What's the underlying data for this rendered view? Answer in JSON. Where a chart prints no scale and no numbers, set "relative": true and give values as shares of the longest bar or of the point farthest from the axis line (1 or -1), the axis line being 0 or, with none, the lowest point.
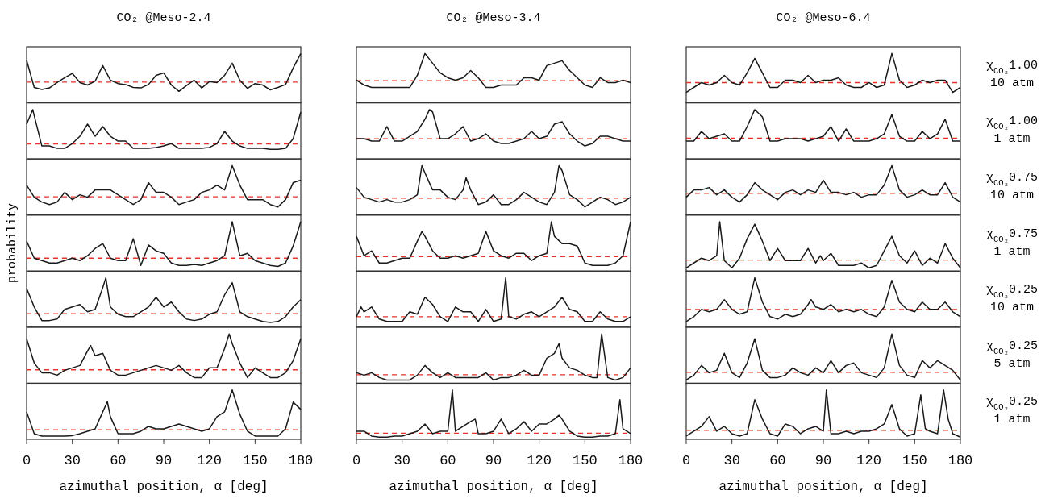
{
  "chart_data": [
    {
      "type": "line",
      "title": "CO₂ @Meso-2.4",
      "relative": true,
      "xlim": [
        0,
        180
      ],
      "tick_labels": false,
      "color": "#1a1a1a",
      "ref_lines": [
        {
          "axis": "y",
          "value": 0.41,
          "color": "#e8312a",
          "line_style": "dashed"
        }
      ],
      "x": [
        0,
        5,
        10,
        15,
        20,
        25,
        30,
        35,
        40,
        45,
        50,
        55,
        60,
        65,
        70,
        75,
        80,
        85,
        90,
        95,
        100,
        105,
        110,
        115,
        120,
        125,
        130,
        135,
        140,
        145,
        150,
        155,
        160,
        165,
        170,
        175,
        180
      ],
      "values": [
        0.86,
        0.3,
        0.26,
        0.29,
        0.4,
        0.5,
        0.59,
        0.4,
        0.35,
        0.43,
        0.75,
        0.45,
        0.38,
        0.36,
        0.3,
        0.29,
        0.36,
        0.55,
        0.6,
        0.35,
        0.22,
        0.34,
        0.45,
        0.29,
        0.42,
        0.4,
        0.55,
        0.8,
        0.45,
        0.28,
        0.38,
        0.35,
        0.25,
        0.3,
        0.36,
        0.7,
        1.0
      ]
    },
    {
      "type": "line",
      "title": "CO₂ @Meso-3.4",
      "relative": true,
      "xlim": [
        0,
        180
      ],
      "tick_labels": false,
      "color": "#1a1a1a",
      "ref_lines": [
        {
          "axis": "y",
          "value": 0.44,
          "color": "#e8312a",
          "line_style": "dashed"
        }
      ],
      "x": [
        0,
        5,
        10,
        15,
        20,
        25,
        30,
        35,
        40,
        45,
        50,
        55,
        60,
        65,
        70,
        75,
        80,
        85,
        90,
        95,
        100,
        105,
        110,
        115,
        120,
        125,
        130,
        135,
        140,
        145,
        150,
        155,
        160,
        165,
        170,
        175,
        180
      ],
      "values": [
        0.45,
        0.35,
        0.3,
        0.3,
        0.3,
        0.3,
        0.3,
        0.3,
        0.55,
        1.0,
        0.8,
        0.6,
        0.5,
        0.45,
        0.5,
        0.65,
        0.5,
        0.3,
        0.3,
        0.35,
        0.35,
        0.35,
        0.5,
        0.5,
        0.45,
        0.75,
        0.8,
        0.85,
        0.65,
        0.5,
        0.35,
        0.3,
        0.5,
        0.4,
        0.4,
        0.45,
        0.4
      ]
    },
    {
      "type": "line",
      "title": "CO₂ @Meso-6.4",
      "y2label": "χ$_{CO₂}$1.00\n10 atm",
      "relative": true,
      "xlim": [
        0,
        180
      ],
      "tick_labels": false,
      "color": "#1a1a1a",
      "ref_lines": [
        {
          "axis": "y",
          "value": 0.4,
          "color": "#e8312a",
          "line_style": "dashed"
        }
      ],
      "x": [
        0,
        5,
        10,
        15,
        20,
        25,
        30,
        35,
        40,
        45,
        50,
        55,
        60,
        65,
        70,
        75,
        80,
        85,
        90,
        95,
        100,
        105,
        110,
        115,
        120,
        125,
        130,
        135,
        140,
        145,
        150,
        155,
        160,
        165,
        170,
        175,
        180
      ],
      "values": [
        0.2,
        0.3,
        0.4,
        0.35,
        0.4,
        0.55,
        0.4,
        0.35,
        0.6,
        0.9,
        0.6,
        0.3,
        0.3,
        0.45,
        0.45,
        0.4,
        0.55,
        0.4,
        0.45,
        0.45,
        0.5,
        0.35,
        0.3,
        0.3,
        0.4,
        0.3,
        0.35,
        1.0,
        0.45,
        0.3,
        0.35,
        0.45,
        0.4,
        0.45,
        0.45,
        0.2,
        0.3
      ]
    },
    {
      "type": "line",
      "relative": true,
      "xlim": [
        0,
        180
      ],
      "tick_labels": false,
      "color": "#1a1a1a",
      "ref_lines": [
        {
          "axis": "y",
          "value": 0.29,
          "color": "#e8312a",
          "line_style": "dashed"
        }
      ],
      "x": [
        0,
        4,
        10,
        15,
        20,
        25,
        30,
        35,
        40,
        45,
        50,
        55,
        60,
        65,
        70,
        75,
        80,
        85,
        90,
        95,
        100,
        105,
        110,
        115,
        120,
        125,
        130,
        135,
        140,
        145,
        150,
        155,
        160,
        165,
        170,
        175,
        180
      ],
      "values": [
        0.7,
        1.0,
        0.25,
        0.25,
        0.2,
        0.2,
        0.3,
        0.45,
        0.7,
        0.45,
        0.65,
        0.45,
        0.35,
        0.35,
        0.2,
        0.2,
        0.2,
        0.22,
        0.25,
        0.3,
        0.2,
        0.2,
        0.2,
        0.2,
        0.22,
        0.3,
        0.55,
        0.35,
        0.25,
        0.2,
        0.2,
        0.2,
        0.18,
        0.18,
        0.2,
        0.4,
        0.95
      ]
    },
    {
      "type": "line",
      "relative": true,
      "xlim": [
        0,
        180
      ],
      "tick_labels": false,
      "color": "#1a1a1a",
      "ref_lines": [
        {
          "axis": "y",
          "value": 0.4,
          "color": "#e8312a",
          "line_style": "dashed"
        }
      ],
      "x": [
        0,
        5,
        10,
        15,
        20,
        25,
        30,
        35,
        40,
        45,
        48,
        50,
        55,
        60,
        65,
        70,
        75,
        80,
        85,
        90,
        95,
        100,
        105,
        110,
        115,
        120,
        125,
        130,
        135,
        140,
        145,
        150,
        155,
        160,
        165,
        170,
        175,
        180
      ],
      "values": [
        0.4,
        0.4,
        0.35,
        0.35,
        0.65,
        0.35,
        0.35,
        0.45,
        0.55,
        0.8,
        1.0,
        0.95,
        0.4,
        0.4,
        0.5,
        0.65,
        0.35,
        0.4,
        0.5,
        0.35,
        0.3,
        0.3,
        0.35,
        0.4,
        0.55,
        0.4,
        0.45,
        0.7,
        0.75,
        0.5,
        0.35,
        0.25,
        0.3,
        0.45,
        0.45,
        0.4,
        0.35,
        0.35
      ]
    },
    {
      "type": "line",
      "y2label": "χ$_{CO₂}$1.00\n1 atm",
      "relative": true,
      "xlim": [
        0,
        180
      ],
      "tick_labels": false,
      "color": "#1a1a1a",
      "ref_lines": [
        {
          "axis": "y",
          "value": 0.41,
          "color": "#e8312a",
          "line_style": "dashed"
        }
      ],
      "x": [
        0,
        5,
        10,
        15,
        20,
        25,
        30,
        35,
        40,
        45,
        50,
        55,
        60,
        65,
        70,
        75,
        80,
        85,
        90,
        95,
        100,
        105,
        110,
        115,
        120,
        125,
        130,
        135,
        140,
        145,
        150,
        155,
        160,
        165,
        170,
        175,
        180
      ],
      "values": [
        0.35,
        0.35,
        0.55,
        0.4,
        0.45,
        0.5,
        0.35,
        0.35,
        0.65,
        1.0,
        0.85,
        0.35,
        0.35,
        0.4,
        0.4,
        0.4,
        0.35,
        0.4,
        0.45,
        0.65,
        0.35,
        0.6,
        0.35,
        0.35,
        0.35,
        0.4,
        0.5,
        0.9,
        0.45,
        0.35,
        0.35,
        0.55,
        0.4,
        0.5,
        0.8,
        0.35,
        0.35
      ]
    },
    {
      "type": "line",
      "relative": true,
      "xlim": [
        0,
        180
      ],
      "tick_labels": false,
      "color": "#1a1a1a",
      "ref_lines": [
        {
          "axis": "y",
          "value": 0.36,
          "color": "#e8312a",
          "line_style": "dashed"
        }
      ],
      "x": [
        0,
        5,
        10,
        15,
        20,
        25,
        30,
        35,
        40,
        45,
        50,
        55,
        60,
        65,
        70,
        75,
        80,
        85,
        90,
        95,
        100,
        105,
        110,
        115,
        120,
        125,
        130,
        135,
        140,
        145,
        150,
        155,
        160,
        165,
        170,
        175,
        180
      ],
      "values": [
        0.6,
        0.35,
        0.25,
        0.2,
        0.25,
        0.45,
        0.3,
        0.4,
        0.35,
        0.5,
        0.5,
        0.5,
        0.4,
        0.3,
        0.2,
        0.3,
        0.65,
        0.45,
        0.45,
        0.35,
        0.2,
        0.25,
        0.3,
        0.45,
        0.5,
        0.6,
        0.5,
        1.0,
        0.6,
        0.3,
        0.3,
        0.3,
        0.2,
        0.15,
        0.3,
        0.65,
        0.7
      ]
    },
    {
      "type": "line",
      "relative": true,
      "xlim": [
        0,
        180
      ],
      "tick_labels": false,
      "color": "#1a1a1a",
      "ref_lines": [
        {
          "axis": "y",
          "value": 0.33,
          "color": "#e8312a",
          "line_style": "dashed"
        }
      ],
      "x": [
        0,
        5,
        10,
        15,
        20,
        25,
        30,
        35,
        40,
        43,
        45,
        50,
        55,
        60,
        65,
        70,
        72,
        75,
        80,
        85,
        90,
        95,
        100,
        105,
        110,
        115,
        120,
        125,
        130,
        133,
        135,
        140,
        145,
        150,
        155,
        160,
        165,
        170,
        175,
        180
      ],
      "values": [
        0.55,
        0.35,
        0.3,
        0.25,
        0.3,
        0.25,
        0.25,
        0.3,
        0.4,
        1.0,
        0.85,
        0.5,
        0.5,
        0.35,
        0.3,
        0.5,
        0.75,
        0.5,
        0.2,
        0.25,
        0.4,
        0.2,
        0.2,
        0.3,
        0.45,
        0.35,
        0.25,
        0.2,
        0.45,
        1.0,
        0.9,
        0.4,
        0.3,
        0.15,
        0.25,
        0.35,
        0.3,
        0.2,
        0.25,
        0.35
      ]
    },
    {
      "type": "line",
      "y2label": "χ$_{CO₂}$0.75\n10 atm",
      "relative": true,
      "xlim": [
        0,
        180
      ],
      "tick_labels": false,
      "color": "#1a1a1a",
      "ref_lines": [
        {
          "axis": "y",
          "value": 0.43,
          "color": "#e8312a",
          "line_style": "dashed"
        }
      ],
      "x": [
        0,
        5,
        10,
        15,
        20,
        25,
        30,
        35,
        40,
        45,
        50,
        55,
        60,
        65,
        70,
        75,
        80,
        85,
        90,
        95,
        100,
        105,
        110,
        115,
        120,
        125,
        130,
        135,
        140,
        145,
        150,
        155,
        160,
        165,
        170,
        175,
        180
      ],
      "values": [
        0.35,
        0.5,
        0.5,
        0.55,
        0.4,
        0.5,
        0.35,
        0.25,
        0.4,
        0.65,
        0.5,
        0.4,
        0.3,
        0.45,
        0.5,
        0.4,
        0.5,
        0.45,
        0.7,
        0.45,
        0.45,
        0.4,
        0.45,
        0.35,
        0.4,
        0.4,
        0.6,
        1.0,
        0.5,
        0.35,
        0.4,
        0.5,
        0.4,
        0.4,
        0.65,
        0.35,
        0.25
      ]
    },
    {
      "type": "line",
      "ylabel": "probability",
      "relative": true,
      "xlim": [
        0,
        180
      ],
      "tick_labels": false,
      "color": "#1a1a1a",
      "ref_lines": [
        {
          "axis": "y",
          "value": 0.25,
          "color": "#e8312a",
          "line_style": "dashed"
        }
      ],
      "x": [
        0,
        5,
        10,
        15,
        20,
        25,
        30,
        35,
        40,
        45,
        50,
        55,
        60,
        65,
        70,
        75,
        80,
        85,
        90,
        95,
        100,
        105,
        110,
        115,
        120,
        125,
        130,
        135,
        140,
        145,
        150,
        155,
        160,
        165,
        170,
        175,
        180
      ],
      "values": [
        0.6,
        0.25,
        0.2,
        0.15,
        0.15,
        0.2,
        0.25,
        0.2,
        0.3,
        0.45,
        0.55,
        0.25,
        0.2,
        0.2,
        0.65,
        0.1,
        0.52,
        0.4,
        0.35,
        0.15,
        0.1,
        0.1,
        0.12,
        0.1,
        0.15,
        0.2,
        0.3,
        1.0,
        0.3,
        0.35,
        0.2,
        0.15,
        0.1,
        0.08,
        0.15,
        0.5,
        1.0
      ]
    },
    {
      "type": "line",
      "relative": true,
      "xlim": [
        0,
        180
      ],
      "tick_labels": false,
      "color": "#1a1a1a",
      "ref_lines": [
        {
          "axis": "y",
          "value": 0.28,
          "color": "#e8312a",
          "line_style": "dashed"
        }
      ],
      "x": [
        0,
        5,
        10,
        15,
        20,
        25,
        30,
        35,
        40,
        43,
        45,
        50,
        55,
        60,
        65,
        70,
        75,
        80,
        85,
        90,
        95,
        100,
        105,
        110,
        115,
        120,
        125,
        128,
        130,
        135,
        140,
        145,
        150,
        155,
        160,
        165,
        170,
        175,
        180
      ],
      "values": [
        0.7,
        0.3,
        0.4,
        0.15,
        0.15,
        0.2,
        0.25,
        0.25,
        0.6,
        0.8,
        0.7,
        0.4,
        0.25,
        0.25,
        0.3,
        0.25,
        0.3,
        0.35,
        0.8,
        0.4,
        0.3,
        0.25,
        0.35,
        0.35,
        0.2,
        0.3,
        0.35,
        1.0,
        0.7,
        0.55,
        0.55,
        0.5,
        0.15,
        0.1,
        0.1,
        0.1,
        0.15,
        0.3,
        1.0
      ]
    },
    {
      "type": "line",
      "y2label": "χ$_{CO₂}$0.75\n1 atm",
      "relative": true,
      "xlim": [
        0,
        180
      ],
      "tick_labels": false,
      "color": "#1a1a1a",
      "ref_lines": [
        {
          "axis": "y",
          "value": 0.21,
          "color": "#e8312a",
          "line_style": "dashed"
        }
      ],
      "x": [
        0,
        5,
        10,
        15,
        20,
        22,
        25,
        30,
        35,
        40,
        45,
        50,
        55,
        60,
        65,
        70,
        75,
        80,
        85,
        88,
        90,
        95,
        100,
        105,
        110,
        115,
        120,
        125,
        130,
        135,
        140,
        145,
        150,
        155,
        160,
        165,
        170,
        175,
        180
      ],
      "values": [
        0.05,
        0.15,
        0.25,
        0.2,
        0.3,
        1.0,
        0.2,
        0.05,
        0.25,
        0.65,
        0.95,
        0.6,
        0.2,
        0.45,
        0.2,
        0.2,
        0.2,
        0.45,
        0.15,
        0.3,
        0.2,
        0.35,
        0.1,
        0.1,
        0.1,
        0.15,
        0.05,
        0.1,
        0.4,
        0.7,
        0.3,
        0.15,
        0.4,
        0.1,
        0.25,
        0.15,
        0.55,
        0.25,
        0.05
      ]
    },
    {
      "type": "line",
      "relative": true,
      "xlim": [
        0,
        180
      ],
      "tick_labels": false,
      "color": "#1a1a1a",
      "ref_lines": [
        {
          "axis": "y",
          "value": 0.26,
          "color": "#e8312a",
          "line_style": "dashed"
        }
      ],
      "x": [
        0,
        5,
        10,
        15,
        20,
        25,
        30,
        35,
        40,
        45,
        50,
        52,
        55,
        60,
        65,
        70,
        75,
        80,
        85,
        90,
        95,
        100,
        105,
        110,
        115,
        120,
        125,
        130,
        135,
        140,
        145,
        150,
        155,
        160,
        165,
        170,
        175,
        180
      ],
      "values": [
        0.78,
        0.4,
        0.12,
        0.12,
        0.15,
        0.35,
        0.4,
        0.45,
        0.3,
        0.35,
        0.8,
        1.0,
        0.4,
        0.25,
        0.2,
        0.2,
        0.3,
        0.4,
        0.6,
        0.4,
        0.5,
        0.3,
        0.15,
        0.12,
        0.15,
        0.25,
        0.3,
        0.65,
        0.9,
        0.3,
        0.2,
        0.15,
        0.1,
        0.08,
        0.1,
        0.2,
        0.4,
        0.55
      ]
    },
    {
      "type": "line",
      "relative": true,
      "xlim": [
        0,
        180
      ],
      "tick_labels": false,
      "color": "#1a1a1a",
      "ref_lines": [
        {
          "axis": "y",
          "value": 0.2,
          "color": "#e8312a",
          "line_style": "dashed"
        }
      ],
      "x": [
        0,
        3,
        5,
        10,
        15,
        20,
        25,
        30,
        35,
        40,
        45,
        50,
        55,
        60,
        65,
        70,
        75,
        80,
        85,
        90,
        95,
        98,
        100,
        105,
        110,
        115,
        120,
        125,
        130,
        135,
        140,
        145,
        150,
        155,
        160,
        165,
        170,
        175,
        180
      ],
      "values": [
        0.2,
        0.4,
        0.3,
        0.4,
        0.15,
        0.1,
        0.1,
        0.1,
        0.3,
        0.25,
        0.6,
        0.45,
        0.2,
        0.1,
        0.4,
        0.3,
        0.3,
        0.1,
        0.35,
        0.1,
        0.15,
        1.0,
        0.2,
        0.15,
        0.25,
        0.3,
        0.2,
        0.3,
        0.4,
        0.6,
        0.35,
        0.3,
        0.1,
        0.1,
        0.3,
        0.15,
        0.1,
        0.1,
        0.2
      ]
    },
    {
      "type": "line",
      "y2label": "χ$_{CO₂}$0.25\n10 atm",
      "relative": true,
      "xlim": [
        0,
        180
      ],
      "tick_labels": false,
      "color": "#1a1a1a",
      "ref_lines": [
        {
          "axis": "y",
          "value": 0.35,
          "color": "#e8312a",
          "line_style": "dashed"
        }
      ],
      "x": [
        0,
        5,
        10,
        15,
        20,
        25,
        30,
        35,
        40,
        45,
        50,
        55,
        60,
        65,
        70,
        75,
        80,
        82,
        85,
        90,
        95,
        100,
        105,
        110,
        115,
        120,
        125,
        130,
        135,
        140,
        145,
        150,
        155,
        160,
        165,
        170,
        175,
        180
      ],
      "values": [
        0.1,
        0.2,
        0.35,
        0.3,
        0.35,
        0.55,
        0.35,
        0.25,
        0.3,
        1.0,
        0.5,
        0.2,
        0.15,
        0.25,
        0.2,
        0.25,
        0.45,
        0.55,
        0.4,
        0.35,
        0.45,
        0.3,
        0.35,
        0.3,
        0.35,
        0.25,
        0.2,
        0.4,
        0.95,
        0.5,
        0.35,
        0.3,
        0.5,
        0.35,
        0.35,
        0.5,
        0.3,
        0.2
      ]
    },
    {
      "type": "line",
      "relative": true,
      "xlim": [
        0,
        180
      ],
      "tick_labels": false,
      "color": "#1a1a1a",
      "ref_lines": [
        {
          "axis": "y",
          "value": 0.26,
          "color": "#e8312a",
          "line_style": "dashed"
        }
      ],
      "x": [
        0,
        5,
        10,
        15,
        20,
        25,
        30,
        35,
        40,
        42,
        45,
        50,
        55,
        60,
        65,
        70,
        75,
        80,
        85,
        90,
        95,
        100,
        105,
        110,
        115,
        120,
        125,
        130,
        133,
        135,
        140,
        145,
        150,
        155,
        160,
        165,
        170,
        175,
        180
      ],
      "values": [
        0.9,
        0.4,
        0.2,
        0.2,
        0.15,
        0.25,
        0.3,
        0.35,
        0.65,
        0.76,
        0.55,
        0.6,
        0.25,
        0.15,
        0.15,
        0.2,
        0.25,
        0.3,
        0.35,
        0.3,
        0.25,
        0.35,
        0.2,
        0.1,
        0.1,
        0.3,
        0.3,
        0.7,
        1.0,
        0.8,
        0.4,
        0.1,
        0.3,
        0.2,
        0.1,
        0.1,
        0.2,
        0.45,
        0.9
      ]
    },
    {
      "type": "line",
      "relative": true,
      "xlim": [
        0,
        180
      ],
      "tick_labels": false,
      "color": "#1a1a1a",
      "ref_lines": [
        {
          "axis": "y",
          "value": 0.16,
          "color": "#e8312a",
          "line_style": "dashed"
        }
      ],
      "x": [
        0,
        5,
        10,
        15,
        20,
        25,
        30,
        35,
        40,
        45,
        50,
        55,
        60,
        65,
        70,
        75,
        80,
        85,
        90,
        95,
        100,
        105,
        110,
        115,
        120,
        125,
        130,
        133,
        135,
        140,
        145,
        150,
        155,
        158,
        161,
        165,
        170,
        175,
        180
      ],
      "values": [
        0.2,
        0.15,
        0.2,
        0.1,
        0.05,
        0.05,
        0.05,
        0.05,
        0.15,
        0.35,
        0.2,
        0.1,
        0.2,
        0.1,
        0.1,
        0.1,
        0.1,
        0.2,
        0.05,
        0.1,
        0.1,
        0.15,
        0.25,
        0.15,
        0.15,
        0.5,
        0.6,
        0.8,
        0.5,
        0.3,
        0.25,
        0.15,
        0.1,
        0.1,
        1.0,
        0.1,
        0.05,
        0.1,
        0.3
      ]
    },
    {
      "type": "line",
      "y2label": "χ$_{CO₂}$0.25\n5 atm",
      "relative": true,
      "xlim": [
        0,
        180
      ],
      "tick_labels": false,
      "color": "#1a1a1a",
      "ref_lines": [
        {
          "axis": "y",
          "value": 0.21,
          "color": "#e8312a",
          "line_style": "dashed"
        }
      ],
      "x": [
        0,
        5,
        10,
        15,
        20,
        25,
        30,
        35,
        40,
        45,
        50,
        55,
        60,
        65,
        70,
        75,
        80,
        85,
        90,
        95,
        100,
        105,
        110,
        115,
        120,
        125,
        130,
        135,
        140,
        145,
        150,
        155,
        160,
        165,
        170,
        175,
        180
      ],
      "values": [
        0.05,
        0.15,
        0.35,
        0.2,
        0.25,
        0.6,
        0.2,
        0.1,
        0.4,
        0.9,
        0.25,
        0.1,
        0.1,
        0.15,
        0.3,
        0.2,
        0.15,
        0.3,
        0.2,
        0.45,
        0.2,
        0.35,
        0.4,
        0.2,
        0.15,
        0.1,
        0.3,
        1.0,
        0.35,
        0.15,
        0.1,
        0.45,
        0.3,
        0.45,
        0.35,
        0.25,
        0.05
      ]
    },
    {
      "type": "line",
      "xlabel": "azimuthal position, α [deg]",
      "relative": true,
      "xlim": [
        0,
        180
      ],
      "xticks": [
        0,
        30,
        60,
        90,
        120,
        150,
        180
      ],
      "tick_labels": "x",
      "color": "#1a1a1a",
      "ref_lines": [
        {
          "axis": "y",
          "value": 0.18,
          "color": "#e8312a",
          "line_style": "dashed"
        }
      ],
      "x": [
        0,
        5,
        10,
        15,
        20,
        25,
        30,
        35,
        40,
        45,
        50,
        53,
        55,
        60,
        65,
        70,
        75,
        80,
        85,
        90,
        95,
        100,
        105,
        110,
        115,
        120,
        125,
        130,
        135,
        140,
        145,
        150,
        155,
        160,
        165,
        170,
        175,
        180
      ],
      "values": [
        0.55,
        0.1,
        0.05,
        0.05,
        0.05,
        0.05,
        0.06,
        0.1,
        0.15,
        0.2,
        0.55,
        0.76,
        0.45,
        0.1,
        0.1,
        0.1,
        0.15,
        0.25,
        0.2,
        0.2,
        0.25,
        0.3,
        0.25,
        0.2,
        0.15,
        0.2,
        0.45,
        0.55,
        1.0,
        0.5,
        0.15,
        0.05,
        0.05,
        0.05,
        0.05,
        0.2,
        0.75,
        0.6
      ]
    },
    {
      "type": "line",
      "xlabel": "azimuthal position, α [deg]",
      "relative": true,
      "xlim": [
        0,
        180
      ],
      "xticks": [
        0,
        30,
        60,
        90,
        120,
        150,
        180
      ],
      "tick_labels": "x",
      "color": "#1a1a1a",
      "ref_lines": [
        {
          "axis": "y",
          "value": 0.11,
          "color": "#e8312a",
          "line_style": "dashed"
        }
      ],
      "x": [
        0,
        5,
        10,
        15,
        20,
        25,
        30,
        35,
        40,
        45,
        50,
        55,
        60,
        63,
        65,
        70,
        75,
        78,
        80,
        85,
        90,
        95,
        100,
        105,
        110,
        115,
        120,
        125,
        130,
        133,
        135,
        140,
        145,
        150,
        155,
        160,
        165,
        170,
        173,
        175,
        180
      ],
      "values": [
        0.15,
        0.15,
        0.05,
        0.03,
        0.03,
        0.05,
        0.05,
        0.1,
        0.15,
        0.3,
        0.1,
        0.15,
        0.15,
        1.0,
        0.15,
        0.25,
        0.35,
        0.4,
        0.1,
        0.1,
        0.15,
        0.4,
        0.1,
        0.2,
        0.35,
        0.15,
        0.3,
        0.3,
        0.4,
        0.48,
        0.4,
        0.15,
        0.05,
        0.03,
        0.03,
        0.05,
        0.05,
        0.1,
        0.8,
        0.2,
        0.1
      ]
    },
    {
      "type": "line",
      "xlabel": "azimuthal position, α [deg]",
      "y2label": "χ$_{CO₂}$0.25\n1 atm",
      "relative": true,
      "xlim": [
        0,
        180
      ],
      "xticks": [
        0,
        30,
        60,
        90,
        120,
        150,
        180
      ],
      "tick_labels": "x",
      "color": "#1a1a1a",
      "ref_lines": [
        {
          "axis": "y",
          "value": 0.17,
          "color": "#e8312a",
          "line_style": "dashed"
        }
      ],
      "x": [
        0,
        5,
        10,
        15,
        20,
        25,
        30,
        35,
        40,
        45,
        50,
        55,
        60,
        65,
        70,
        75,
        80,
        85,
        90,
        92,
        95,
        100,
        105,
        110,
        115,
        120,
        125,
        130,
        135,
        140,
        145,
        150,
        154,
        157,
        160,
        165,
        169,
        172,
        175,
        180
      ],
      "values": [
        0.05,
        0.15,
        0.25,
        0.45,
        0.15,
        0.25,
        0.1,
        0.05,
        0.1,
        0.8,
        0.4,
        0.1,
        0.05,
        0.3,
        0.25,
        0.1,
        0.2,
        0.25,
        0.15,
        1.0,
        0.1,
        0.1,
        0.15,
        0.1,
        0.15,
        0.15,
        0.2,
        0.3,
        0.7,
        0.2,
        0.05,
        0.1,
        0.9,
        0.2,
        0.15,
        0.1,
        1.0,
        0.4,
        0.1,
        0.03
      ]
    }
  ]
}
